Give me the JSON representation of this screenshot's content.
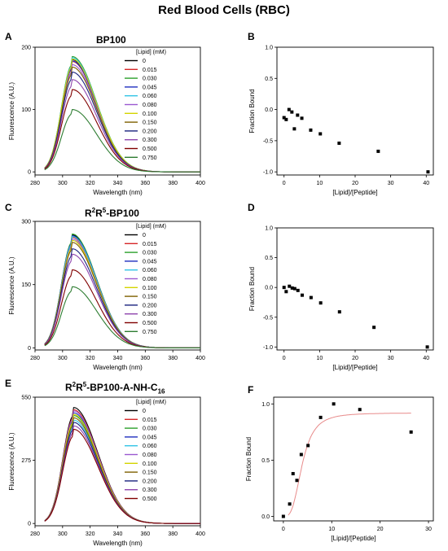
{
  "figure_title": "Red Blood Cells (RBC)",
  "legend_title": "[Lipid] (mM)",
  "panels": {
    "A": {
      "letter": "A",
      "title": "BP100"
    },
    "B": {
      "letter": "B"
    },
    "C": {
      "letter": "C",
      "title_pre": "R",
      "title_sup1": "2",
      "title_mid": "R",
      "title_sup2": "5",
      "title_post": "-BP100"
    },
    "D": {
      "letter": "D"
    },
    "E": {
      "letter": "E",
      "title_pre": "R",
      "title_sup1": "2",
      "title_mid": "R",
      "title_sup2": "5",
      "title_post": "-BP100-A-NH-C",
      "title_sub": "16"
    },
    "F": {
      "letter": "F"
    }
  },
  "colors": {
    "0": "#000000",
    "0.015": "#d62728",
    "0.030": "#2ca02c",
    "0.045": "#1f2fbf",
    "0.060": "#33c4e6",
    "0.080": "#9b59d0",
    "0.100": "#d4d400",
    "0.150": "#7f6000",
    "0.200": "#1a237e",
    "0.300": "#8e44ad",
    "0.500": "#800000",
    "0.750": "#2e7d32",
    "fit": "#e88a8a"
  },
  "chart_data": [
    {
      "id": "A",
      "type": "line",
      "xlabel": "Wavelength (nm)",
      "ylabel": "Fluorescence (A.U.)",
      "xlim": [
        280,
        400
      ],
      "ylim": [
        -5,
        200
      ],
      "xticks": [
        280,
        300,
        320,
        340,
        360,
        380,
        400
      ],
      "yticks": [
        0,
        100,
        200
      ],
      "legend_title": "[Lipid] (mM)",
      "peak_wavelength": 307,
      "series": [
        {
          "name": "0",
          "peak": 180
        },
        {
          "name": "0.015",
          "peak": 177
        },
        {
          "name": "0.030",
          "peak": 185
        },
        {
          "name": "0.045",
          "peak": 178
        },
        {
          "name": "0.060",
          "peak": 183
        },
        {
          "name": "0.080",
          "peak": 172
        },
        {
          "name": "0.100",
          "peak": 181
        },
        {
          "name": "0.150",
          "peak": 168
        },
        {
          "name": "0.200",
          "peak": 160
        },
        {
          "name": "0.300",
          "peak": 148
        },
        {
          "name": "0.500",
          "peak": 132
        },
        {
          "name": "0.750",
          "peak": 100
        }
      ]
    },
    {
      "id": "B",
      "type": "scatter",
      "xlabel": "[Lipid]/[Peptide]",
      "ylabel": "Fraction Bound",
      "xlim": [
        -2,
        42
      ],
      "ylim": [
        -1.05,
        1.0
      ],
      "xticks": [
        0,
        10,
        20,
        30,
        40
      ],
      "yticks": [
        -1.0,
        -0.5,
        0.0,
        0.5,
        1.0
      ],
      "points": [
        [
          0,
          -0.13
        ],
        [
          0.6,
          -0.16
        ],
        [
          1.4,
          0.0
        ],
        [
          2.2,
          -0.04
        ],
        [
          2.9,
          -0.31
        ],
        [
          3.8,
          -0.09
        ],
        [
          5.0,
          -0.14
        ],
        [
          7.5,
          -0.33
        ],
        [
          10.2,
          -0.39
        ],
        [
          15.5,
          -0.54
        ],
        [
          26.5,
          -0.67
        ],
        [
          40.5,
          -1.0
        ]
      ]
    },
    {
      "id": "C",
      "type": "line",
      "xlabel": "Wavelength (nm)",
      "ylabel": "Fluorescence (A.U.)",
      "xlim": [
        280,
        400
      ],
      "ylim": [
        -5,
        300
      ],
      "xticks": [
        280,
        300,
        320,
        340,
        360,
        380,
        400
      ],
      "yticks": [
        0,
        150,
        300
      ],
      "legend_title": "[Lipid] (mM)",
      "peak_wavelength": 307,
      "series": [
        {
          "name": "0",
          "peak": 268
        },
        {
          "name": "0.015",
          "peak": 262
        },
        {
          "name": "0.030",
          "peak": 270
        },
        {
          "name": "0.045",
          "peak": 266
        },
        {
          "name": "0.060",
          "peak": 264
        },
        {
          "name": "0.080",
          "peak": 258
        },
        {
          "name": "0.100",
          "peak": 255
        },
        {
          "name": "0.150",
          "peak": 250
        },
        {
          "name": "0.200",
          "peak": 235
        },
        {
          "name": "0.300",
          "peak": 222
        },
        {
          "name": "0.500",
          "peak": 185
        },
        {
          "name": "0.750",
          "peak": 145
        }
      ]
    },
    {
      "id": "D",
      "type": "scatter",
      "xlabel": "[Lipid]/[Peptide]",
      "ylabel": "Fraction Bound",
      "xlim": [
        -2,
        42
      ],
      "ylim": [
        -1.05,
        1.0
      ],
      "xticks": [
        0,
        10,
        20,
        30,
        40
      ],
      "yticks": [
        -1.0,
        -0.5,
        0.0,
        0.5,
        1.0
      ],
      "points": [
        [
          0,
          0.0
        ],
        [
          0.6,
          -0.07
        ],
        [
          1.5,
          0.02
        ],
        [
          2.3,
          -0.01
        ],
        [
          3.0,
          -0.02
        ],
        [
          3.9,
          -0.05
        ],
        [
          5.1,
          -0.13
        ],
        [
          7.6,
          -0.17
        ],
        [
          10.3,
          -0.26
        ],
        [
          15.6,
          -0.41
        ],
        [
          25.3,
          -0.67
        ],
        [
          40.3,
          -1.0
        ]
      ]
    },
    {
      "id": "E",
      "type": "line",
      "xlabel": "Wavelength (nm)",
      "ylabel": "Fluorescence (A.U.)",
      "xlim": [
        280,
        400
      ],
      "ylim": [
        -10,
        550
      ],
      "xticks": [
        280,
        300,
        320,
        340,
        360,
        380,
        400
      ],
      "yticks": [
        0,
        275,
        550
      ],
      "legend_title": "[Lipid] (mM)",
      "peak_wavelength": 308,
      "series": [
        {
          "name": "0",
          "peak": 505
        },
        {
          "name": "0.015",
          "peak": 495
        },
        {
          "name": "0.030",
          "peak": 470
        },
        {
          "name": "0.045",
          "peak": 482
        },
        {
          "name": "0.060",
          "peak": 450
        },
        {
          "name": "0.080",
          "peak": 490
        },
        {
          "name": "0.100",
          "peak": 475
        },
        {
          "name": "0.150",
          "peak": 460
        },
        {
          "name": "0.200",
          "peak": 440
        },
        {
          "name": "0.300",
          "peak": 425
        },
        {
          "name": "0.500",
          "peak": 410
        }
      ]
    },
    {
      "id": "F",
      "type": "scatter",
      "xlabel": "[Lipid]/[Peptide]",
      "ylabel": "Fraction Bound",
      "xlim": [
        -2,
        31
      ],
      "ylim": [
        -0.04,
        1.06
      ],
      "xticks": [
        0,
        10,
        20,
        30
      ],
      "yticks": [
        0.0,
        0.5,
        1.0
      ],
      "points": [
        [
          0,
          0.0
        ],
        [
          1.3,
          0.11
        ],
        [
          2.0,
          0.38
        ],
        [
          2.8,
          0.32
        ],
        [
          3.7,
          0.55
        ],
        [
          5.1,
          0.63
        ],
        [
          7.7,
          0.88
        ],
        [
          10.4,
          1.0
        ],
        [
          15.8,
          0.95
        ],
        [
          26.4,
          0.75
        ]
      ],
      "fit": {
        "max": 0.92,
        "half": 3.9,
        "hill": 3.2,
        "x_start": 1.0,
        "x_end": 26.5
      }
    }
  ]
}
